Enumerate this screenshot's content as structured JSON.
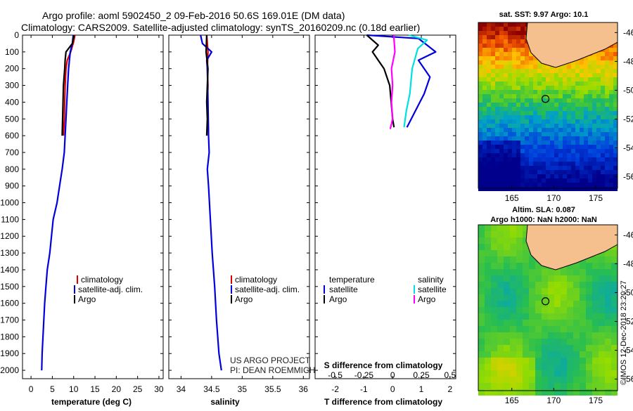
{
  "title_line1": "Argo profile: aoml 5902450_2 09-Feb-2016 50.6S 169.01E (DM data)",
  "title_line2": "Climatology: CARS2009. Satellite-adjusted climatology: synTS_20160209.nc (0.18d earlier)",
  "credit_line1": "US ARGO PROJECT",
  "credit_line2": "PI: DEAN ROEMMICH",
  "stamp": "©IMOS 12-Dec-2018 23:20:27",
  "sst_title": "sat. SST: 9.97 Argo: 10.1",
  "sla_title1": "Altim. SLA: 0.087",
  "sla_title2": "Argo h1000: NaN h2000: NaN",
  "colors": {
    "climatology": "#e00000",
    "satellite": "#0000dd",
    "argo": "#000000",
    "sal_satellite": "#00e0e0",
    "sal_argo": "#ff00ff"
  },
  "chart_data": [
    {
      "type": "line",
      "xlabel": "temperature (deg C)",
      "xlim": [
        -2,
        31
      ],
      "ylim": [
        2050,
        0
      ],
      "xticks": [
        0,
        5,
        10,
        15,
        20,
        25,
        30
      ],
      "yticks": [
        0,
        100,
        200,
        300,
        400,
        500,
        600,
        700,
        800,
        900,
        1000,
        1100,
        1200,
        1300,
        1400,
        1500,
        1600,
        1700,
        1800,
        1900,
        2000
      ],
      "legend": [
        "climatology",
        "satellite-adj. clim.",
        "Argo"
      ],
      "series": [
        {
          "name": "climatology",
          "color": "climatology",
          "points": [
            [
              10.3,
              0
            ],
            [
              10.0,
              40
            ],
            [
              9.3,
              100
            ],
            [
              8.5,
              150
            ],
            [
              8.2,
              200
            ],
            [
              8.0,
              300
            ],
            [
              7.9,
              400
            ],
            [
              7.8,
              500
            ],
            [
              7.6,
              600
            ]
          ]
        },
        {
          "name": "satellite-adj. clim.",
          "color": "satellite",
          "points": [
            [
              9.9,
              0
            ],
            [
              9.7,
              50
            ],
            [
              9.2,
              100
            ],
            [
              8.8,
              200
            ],
            [
              8.6,
              300
            ],
            [
              8.4,
              400
            ],
            [
              8.2,
              500
            ],
            [
              8.0,
              600
            ],
            [
              7.8,
              700
            ],
            [
              7.3,
              800
            ],
            [
              6.7,
              900
            ],
            [
              6.1,
              1000
            ],
            [
              5.2,
              1100
            ],
            [
              4.8,
              1200
            ],
            [
              4.4,
              1300
            ],
            [
              3.8,
              1400
            ],
            [
              3.5,
              1500
            ],
            [
              3.2,
              1600
            ],
            [
              3.0,
              1700
            ],
            [
              2.8,
              1800
            ],
            [
              2.6,
              1900
            ],
            [
              2.5,
              2000
            ]
          ]
        },
        {
          "name": "Argo",
          "color": "argo",
          "points": [
            [
              10.1,
              0
            ],
            [
              9.7,
              50
            ],
            [
              8.2,
              100
            ],
            [
              8.0,
              150
            ],
            [
              7.9,
              200
            ],
            [
              7.6,
              300
            ],
            [
              7.5,
              400
            ],
            [
              7.4,
              500
            ],
            [
              7.3,
              600
            ]
          ]
        }
      ]
    },
    {
      "type": "line",
      "xlabel": "salinity",
      "xlim": [
        33.8,
        36.1
      ],
      "ylim": [
        2050,
        0
      ],
      "xticks": [
        34,
        34.5,
        35,
        35.5,
        36
      ],
      "xticklabels": [
        "34",
        "34.5",
        "35",
        "35.5",
        "36"
      ],
      "legend": [
        "climatology",
        "satellite-adj. clim.",
        "Argo"
      ],
      "series": [
        {
          "name": "climatology",
          "color": "climatology",
          "points": [
            [
              34.42,
              0
            ],
            [
              34.44,
              100
            ],
            [
              34.43,
              200
            ],
            [
              34.44,
              300
            ],
            [
              34.43,
              400
            ],
            [
              34.44,
              500
            ],
            [
              34.45,
              600
            ]
          ]
        },
        {
          "name": "satellite-adj. clim.",
          "color": "satellite",
          "points": [
            [
              34.32,
              0
            ],
            [
              34.35,
              50
            ],
            [
              34.5,
              100
            ],
            [
              34.42,
              150
            ],
            [
              34.43,
              200
            ],
            [
              34.44,
              400
            ],
            [
              34.45,
              600
            ],
            [
              34.46,
              700
            ],
            [
              34.43,
              800
            ],
            [
              34.45,
              900
            ],
            [
              34.48,
              1100
            ],
            [
              34.51,
              1300
            ],
            [
              34.55,
              1500
            ],
            [
              34.58,
              1700
            ],
            [
              34.62,
              1900
            ],
            [
              34.66,
              2000
            ]
          ]
        },
        {
          "name": "Argo",
          "color": "argo",
          "points": [
            [
              34.42,
              0
            ],
            [
              34.41,
              100
            ],
            [
              34.44,
              200
            ],
            [
              34.43,
              300
            ],
            [
              34.42,
              400
            ],
            [
              34.43,
              500
            ],
            [
              34.42,
              600
            ]
          ]
        }
      ]
    },
    {
      "type": "line",
      "xlabel": "T difference from climatology",
      "x2label": "S difference from climatology",
      "xlim": [
        -2.7,
        2.2
      ],
      "ylim": [
        2050,
        0
      ],
      "xticks": [
        -2,
        -1,
        0,
        1,
        2
      ],
      "x2ticks": [
        -0.5,
        -0.25,
        0,
        0.25,
        0.5
      ],
      "x2ticklabels": [
        "-0.5",
        "-0.25",
        "0",
        "0.25",
        "0.5"
      ],
      "legend_left_title": "temperature",
      "legend_right_title": "salinity",
      "legend_left": [
        "satellite",
        "Argo"
      ],
      "legend_right": [
        "satellite",
        "Argo"
      ],
      "series": [
        {
          "name": "satellite",
          "color": "satellite",
          "points": [
            [
              -0.9,
              0
            ],
            [
              0.9,
              20
            ],
            [
              1.2,
              60
            ],
            [
              1.5,
              100
            ],
            [
              0.9,
              150
            ],
            [
              1.3,
              250
            ],
            [
              1.1,
              350
            ],
            [
              0.8,
              450
            ],
            [
              0.5,
              550
            ]
          ]
        },
        {
          "name": "Argo",
          "color": "argo",
          "points": [
            [
              -0.9,
              0
            ],
            [
              -0.5,
              60
            ],
            [
              -0.7,
              100
            ],
            [
              -0.3,
              200
            ],
            [
              -0.1,
              300
            ],
            [
              -0.05,
              400
            ],
            [
              0.0,
              500
            ],
            [
              0.05,
              550
            ]
          ]
        },
        {
          "name": "satellite",
          "color": "sal_satellite",
          "points": [
            [
              0.14,
              0
            ],
            [
              0.3,
              30
            ],
            [
              0.22,
              80
            ],
            [
              0.17,
              200
            ],
            [
              0.15,
              350
            ],
            [
              0.12,
              450
            ],
            [
              0.1,
              550
            ]
          ]
        },
        {
          "name": "Argo",
          "color": "sal_argo",
          "points": [
            [
              0.01,
              0
            ],
            [
              0.02,
              100
            ],
            [
              -0.01,
              200
            ],
            [
              0.0,
              300
            ],
            [
              -0.01,
              400
            ],
            [
              0.0,
              500
            ],
            [
              -0.02,
              560
            ]
          ]
        }
      ]
    },
    {
      "type": "heatmap",
      "title": "sat. SST: 9.97 Argo: 10.1",
      "xticks": [
        165,
        170,
        175
      ],
      "yticks": [
        -46,
        -48,
        -50,
        -52,
        -54,
        -56
      ],
      "argo_position": [
        169.01,
        -50.6
      ]
    },
    {
      "type": "heatmap",
      "title": "Altim. SLA: 0.087",
      "xticks": [
        165,
        170,
        175
      ],
      "yticks": [
        -46,
        -48,
        -50,
        -52,
        -54,
        -56
      ],
      "argo_position": [
        169.01,
        -50.6
      ]
    }
  ]
}
